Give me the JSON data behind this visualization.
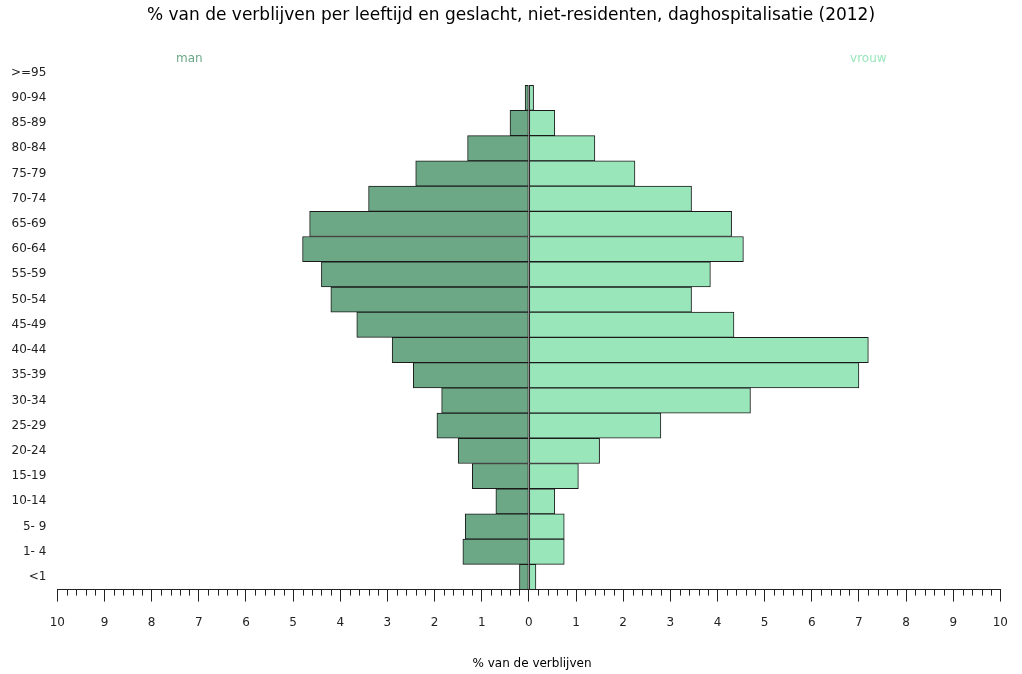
{
  "chart_data": {
    "type": "bar",
    "orientation": "horizontal",
    "stacked": true,
    "legend": false,
    "grid": false,
    "title": "% van de verblijven per leeftijd en geslacht, niet-residenten, daghospitalisatie (2012)",
    "xlabel": "% van de verblijven",
    "categories": [
      ">=95",
      "90-94",
      "85-89",
      "80-84",
      "75-79",
      "70-74",
      "65-69",
      "60-64",
      "55-59",
      "50-54",
      "45-49",
      "40-44",
      "35-39",
      "30-34",
      "25-29",
      "20-24",
      "15-19",
      "10-14",
      "5- 9",
      "1- 4",
      "<1"
    ],
    "series": [
      {
        "name": "man",
        "color": "#6da886",
        "values": [
          0,
          -0.08,
          -0.4,
          -1.3,
          -2.4,
          -3.4,
          -4.65,
          -4.8,
          -4.4,
          -4.2,
          -3.65,
          -2.9,
          -2.45,
          -1.85,
          -1.95,
          -1.5,
          -1.2,
          -0.7,
          -1.35,
          -1.4,
          -0.2
        ]
      },
      {
        "name": "vrouw",
        "color": "#99e6bb",
        "values": [
          0,
          0.1,
          0.55,
          1.4,
          2.25,
          3.45,
          4.3,
          4.55,
          3.85,
          3.45,
          4.35,
          7.2,
          7.0,
          4.7,
          2.8,
          1.5,
          1.05,
          0.55,
          0.75,
          0.75,
          0.15
        ]
      }
    ],
    "xlim": [
      -10,
      10
    ],
    "xticks": [
      {
        "value": -10,
        "label": "10"
      },
      {
        "value": -9,
        "label": "9"
      },
      {
        "value": -8,
        "label": "8"
      },
      {
        "value": -7,
        "label": "7"
      },
      {
        "value": -6,
        "label": "6"
      },
      {
        "value": -5,
        "label": "5"
      },
      {
        "value": -4,
        "label": "4"
      },
      {
        "value": -3,
        "label": "3"
      },
      {
        "value": -2,
        "label": "2"
      },
      {
        "value": -1,
        "label": "1"
      },
      0,
      1,
      2,
      3,
      4,
      5,
      6,
      7,
      8,
      9,
      10
    ]
  }
}
